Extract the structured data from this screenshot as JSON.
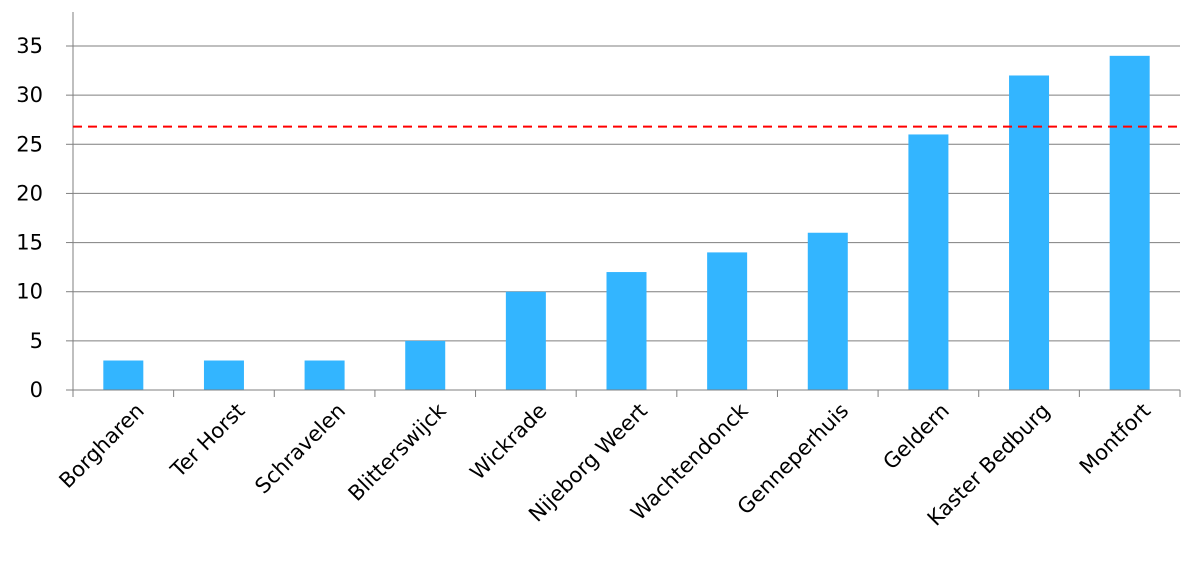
{
  "chart_data": {
    "type": "bar",
    "title": "",
    "xlabel": "",
    "ylabel": "",
    "categories": [
      "Borgharen",
      "Ter Horst",
      "Schravelen",
      "Blitterswijck",
      "Wickrade",
      "Nijeborg Weert",
      "Wachtendonck",
      "Genneperhuis",
      "Geldern",
      "Kaster Bedburg",
      "Montfort"
    ],
    "values": [
      3,
      3,
      3,
      5,
      10,
      12,
      14,
      16,
      26,
      32,
      34
    ],
    "ylim": [
      0,
      35
    ],
    "yticks": [
      0,
      5,
      10,
      15,
      20,
      25,
      30,
      35
    ],
    "grid": true,
    "reference_line": {
      "value": 26.8,
      "style": "dashed",
      "color": "#ff0000"
    },
    "bar_color": "#33b5ff",
    "grid_color": "#7f7f7f"
  }
}
